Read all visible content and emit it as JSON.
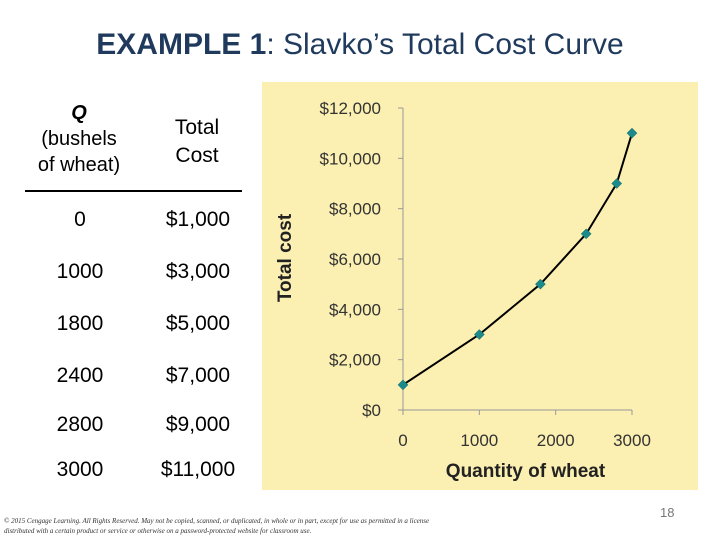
{
  "slide": {
    "title_bold": "EXAMPLE 1",
    "title_rest": ":  Slavko’s Total Cost Curve",
    "footer": "© 2015 Cengage Learning. All Rights Reserved. May not be copied, scanned, or duplicated, in whole or in part, except for use as permitted in a license distributed with a certain product or service or otherwise on a password-protected website for classroom use.",
    "page_number": "18"
  },
  "table": {
    "header_q_top": "Q",
    "header_q_rest_1": "(bushels",
    "header_q_rest_2": "of wheat)",
    "header_cost_1": "Total",
    "header_cost_2": "Cost",
    "rows": [
      {
        "q": "0",
        "cost": "$1,000"
      },
      {
        "q": "1000",
        "cost": "$3,000"
      },
      {
        "q": "1800",
        "cost": "$5,000"
      },
      {
        "q": "2400",
        "cost": "$7,000"
      },
      {
        "q": "2800",
        "cost": "$9,000"
      },
      {
        "q": "3000",
        "cost": "$11,000"
      }
    ]
  },
  "chart_data": {
    "type": "line",
    "xlabel": "Quantity of wheat",
    "ylabel": "Total cost",
    "x_ticks": [
      0,
      1000,
      2000,
      3000
    ],
    "x_tick_labels": [
      "0",
      "1000",
      "2000",
      "3000"
    ],
    "y_ticks": [
      0,
      2000,
      4000,
      6000,
      8000,
      10000,
      12000
    ],
    "y_tick_labels": [
      "$0",
      "$2,000",
      "$4,000",
      "$6,000",
      "$8,000",
      "$10,000",
      "$12,000"
    ],
    "xlim": [
      0,
      3000
    ],
    "ylim": [
      0,
      12000
    ],
    "grid": false,
    "colors": {
      "line": "#000000",
      "marker": "#1a8a8a",
      "background": "#fbf0b2"
    },
    "series": [
      {
        "x": [
          0,
          1000,
          1800,
          2400,
          2800,
          3000
        ],
        "y": [
          1000,
          3000,
          5000,
          7000,
          9000,
          11000
        ]
      }
    ]
  }
}
